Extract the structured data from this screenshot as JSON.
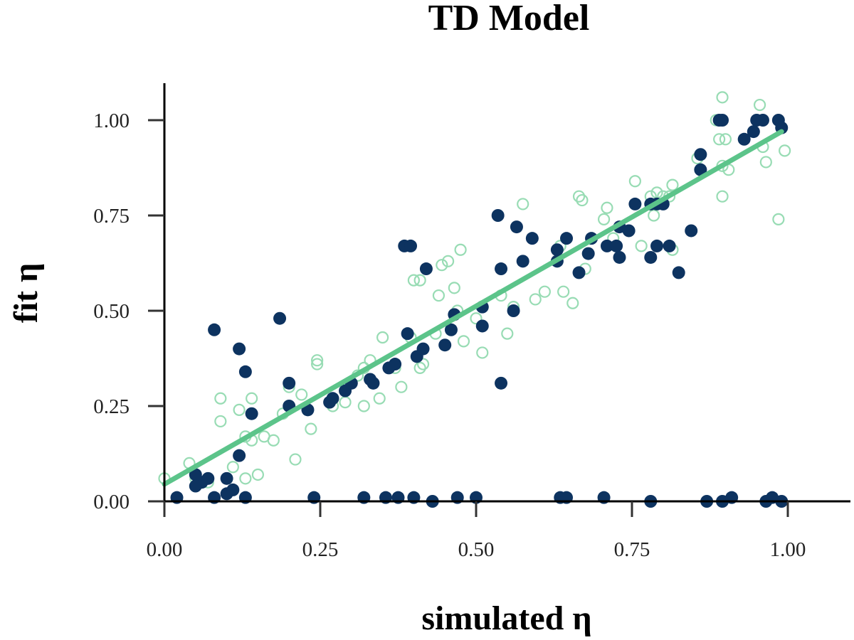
{
  "chart_data": {
    "type": "scatter",
    "title": "TD Model",
    "xlabel": "simulated η",
    "ylabel": "fit η",
    "xlim": [
      0.0,
      1.1
    ],
    "ylim": [
      0.0,
      1.1
    ],
    "xticks": [
      "0.00",
      "0.25",
      "0.50",
      "0.75",
      "1.00"
    ],
    "yticks": [
      "0.00",
      "0.25",
      "0.50",
      "0.75",
      "1.00"
    ],
    "xtick_values": [
      0.0,
      0.25,
      0.5,
      0.75,
      1.0
    ],
    "ytick_values": [
      0.0,
      0.25,
      0.5,
      0.75,
      1.0
    ],
    "colors": {
      "filled": "#0d3360",
      "hollow": "#98dcb4",
      "fit_line": "#5cc48a"
    },
    "fit_line": {
      "x": [
        0.0,
        0.99
      ],
      "y": [
        0.045,
        0.97
      ]
    },
    "series": [
      {
        "name": "filled",
        "style": "filled",
        "points": [
          [
            0.02,
            0.01
          ],
          [
            0.05,
            0.07
          ],
          [
            0.06,
            0.05
          ],
          [
            0.05,
            0.04
          ],
          [
            0.07,
            0.06
          ],
          [
            0.08,
            0.45
          ],
          [
            0.1,
            0.06
          ],
          [
            0.1,
            0.02
          ],
          [
            0.11,
            0.03
          ],
          [
            0.12,
            0.12
          ],
          [
            0.12,
            0.4
          ],
          [
            0.13,
            0.34
          ],
          [
            0.14,
            0.23
          ],
          [
            0.13,
            0.01
          ],
          [
            0.08,
            0.01
          ],
          [
            0.185,
            0.48
          ],
          [
            0.2,
            0.31
          ],
          [
            0.2,
            0.25
          ],
          [
            0.23,
            0.24
          ],
          [
            0.24,
            0.01
          ],
          [
            0.265,
            0.26
          ],
          [
            0.27,
            0.27
          ],
          [
            0.29,
            0.29
          ],
          [
            0.3,
            0.31
          ],
          [
            0.32,
            0.01
          ],
          [
            0.33,
            0.32
          ],
          [
            0.335,
            0.31
          ],
          [
            0.36,
            0.35
          ],
          [
            0.37,
            0.36
          ],
          [
            0.355,
            0.01
          ],
          [
            0.375,
            0.01
          ],
          [
            0.385,
            0.67
          ],
          [
            0.395,
            0.67
          ],
          [
            0.39,
            0.44
          ],
          [
            0.4,
            0.01
          ],
          [
            0.405,
            0.38
          ],
          [
            0.415,
            0.4
          ],
          [
            0.42,
            0.61
          ],
          [
            0.43,
            0.0
          ],
          [
            0.45,
            0.41
          ],
          [
            0.46,
            0.45
          ],
          [
            0.465,
            0.49
          ],
          [
            0.47,
            0.01
          ],
          [
            0.5,
            0.01
          ],
          [
            0.51,
            0.51
          ],
          [
            0.51,
            0.46
          ],
          [
            0.535,
            0.75
          ],
          [
            0.54,
            0.61
          ],
          [
            0.54,
            0.31
          ],
          [
            0.56,
            0.5
          ],
          [
            0.565,
            0.72
          ],
          [
            0.575,
            0.63
          ],
          [
            0.59,
            0.69
          ],
          [
            0.63,
            0.66
          ],
          [
            0.63,
            0.63
          ],
          [
            0.635,
            0.01
          ],
          [
            0.645,
            0.69
          ],
          [
            0.645,
            0.01
          ],
          [
            0.665,
            0.6
          ],
          [
            0.68,
            0.65
          ],
          [
            0.685,
            0.69
          ],
          [
            0.705,
            0.01
          ],
          [
            0.71,
            0.67
          ],
          [
            0.725,
            0.67
          ],
          [
            0.73,
            0.72
          ],
          [
            0.73,
            0.64
          ],
          [
            0.745,
            0.71
          ],
          [
            0.755,
            0.78
          ],
          [
            0.78,
            0.78
          ],
          [
            0.78,
            0.64
          ],
          [
            0.78,
            0.0
          ],
          [
            0.79,
            0.67
          ],
          [
            0.79,
            0.78
          ],
          [
            0.8,
            0.78
          ],
          [
            0.81,
            0.67
          ],
          [
            0.825,
            0.6
          ],
          [
            0.845,
            0.71
          ],
          [
            0.86,
            0.91
          ],
          [
            0.86,
            0.87
          ],
          [
            0.87,
            0.0
          ],
          [
            0.89,
            1.0
          ],
          [
            0.895,
            1.0
          ],
          [
            0.895,
            0.0
          ],
          [
            0.91,
            0.01
          ],
          [
            0.93,
            0.95
          ],
          [
            0.945,
            0.97
          ],
          [
            0.95,
            1.0
          ],
          [
            0.96,
            1.0
          ],
          [
            0.965,
            0.0
          ],
          [
            0.975,
            0.01
          ],
          [
            0.985,
            1.0
          ],
          [
            0.99,
            0.98
          ],
          [
            0.99,
            0.0
          ]
        ]
      },
      {
        "name": "hollow",
        "style": "hollow",
        "points": [
          [
            0.0,
            0.06
          ],
          [
            0.04,
            0.1
          ],
          [
            0.05,
            0.06
          ],
          [
            0.07,
            0.05
          ],
          [
            0.09,
            0.21
          ],
          [
            0.09,
            0.27
          ],
          [
            0.11,
            0.09
          ],
          [
            0.12,
            0.24
          ],
          [
            0.13,
            0.17
          ],
          [
            0.13,
            0.06
          ],
          [
            0.14,
            0.27
          ],
          [
            0.14,
            0.16
          ],
          [
            0.15,
            0.07
          ],
          [
            0.16,
            0.17
          ],
          [
            0.175,
            0.16
          ],
          [
            0.19,
            0.23
          ],
          [
            0.2,
            0.3
          ],
          [
            0.21,
            0.11
          ],
          [
            0.22,
            0.28
          ],
          [
            0.23,
            0.24
          ],
          [
            0.235,
            0.19
          ],
          [
            0.245,
            0.36
          ],
          [
            0.245,
            0.37
          ],
          [
            0.27,
            0.25
          ],
          [
            0.29,
            0.26
          ],
          [
            0.31,
            0.33
          ],
          [
            0.32,
            0.35
          ],
          [
            0.32,
            0.25
          ],
          [
            0.33,
            0.37
          ],
          [
            0.345,
            0.27
          ],
          [
            0.35,
            0.43
          ],
          [
            0.37,
            0.35
          ],
          [
            0.38,
            0.3
          ],
          [
            0.395,
            0.43
          ],
          [
            0.4,
            0.58
          ],
          [
            0.41,
            0.58
          ],
          [
            0.41,
            0.35
          ],
          [
            0.415,
            0.36
          ],
          [
            0.435,
            0.44
          ],
          [
            0.44,
            0.54
          ],
          [
            0.445,
            0.62
          ],
          [
            0.45,
            0.41
          ],
          [
            0.455,
            0.63
          ],
          [
            0.465,
            0.56
          ],
          [
            0.47,
            0.5
          ],
          [
            0.475,
            0.66
          ],
          [
            0.48,
            0.42
          ],
          [
            0.5,
            0.48
          ],
          [
            0.51,
            0.39
          ],
          [
            0.54,
            0.54
          ],
          [
            0.55,
            0.44
          ],
          [
            0.56,
            0.51
          ],
          [
            0.575,
            0.78
          ],
          [
            0.595,
            0.53
          ],
          [
            0.61,
            0.55
          ],
          [
            0.635,
            0.67
          ],
          [
            0.64,
            0.55
          ],
          [
            0.655,
            0.52
          ],
          [
            0.665,
            0.8
          ],
          [
            0.67,
            0.79
          ],
          [
            0.675,
            0.61
          ],
          [
            0.705,
            0.74
          ],
          [
            0.71,
            0.77
          ],
          [
            0.72,
            0.69
          ],
          [
            0.755,
            0.84
          ],
          [
            0.765,
            0.67
          ],
          [
            0.78,
            0.8
          ],
          [
            0.785,
            0.75
          ],
          [
            0.79,
            0.81
          ],
          [
            0.8,
            0.8
          ],
          [
            0.81,
            0.8
          ],
          [
            0.815,
            0.66
          ],
          [
            0.815,
            0.83
          ],
          [
            0.855,
            0.9
          ],
          [
            0.885,
            1.0
          ],
          [
            0.89,
            0.95
          ],
          [
            0.895,
            1.06
          ],
          [
            0.895,
            0.88
          ],
          [
            0.895,
            0.8
          ],
          [
            0.9,
            0.95
          ],
          [
            0.905,
            0.87
          ],
          [
            0.955,
            1.04
          ],
          [
            0.96,
            0.93
          ],
          [
            0.965,
            0.89
          ],
          [
            0.985,
            0.74
          ],
          [
            0.995,
            0.92
          ]
        ]
      }
    ]
  }
}
